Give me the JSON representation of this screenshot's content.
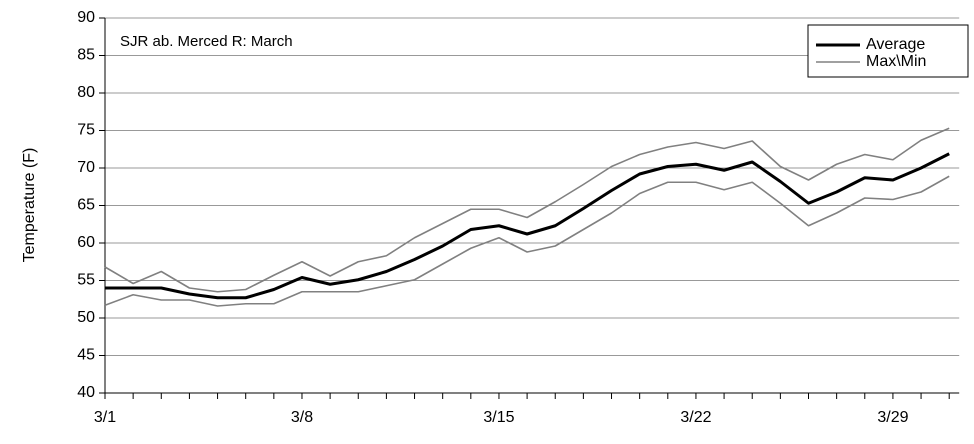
{
  "chart_data": {
    "type": "line",
    "annotation": "SJR ab. Merced R: March",
    "y_label": "Temperature (F)",
    "categories": [
      "3/1",
      null,
      null,
      null,
      null,
      null,
      null,
      "3/8",
      null,
      null,
      null,
      null,
      null,
      null,
      "3/15",
      null,
      null,
      null,
      null,
      null,
      null,
      "3/22",
      null,
      null,
      null,
      null,
      null,
      null,
      "3/29",
      null,
      null
    ],
    "series": [
      {
        "name": "Average",
        "color": "#000000",
        "values": [
          54,
          54,
          54,
          53.2,
          52.7,
          52.7,
          53.8,
          55.4,
          54.5,
          55.1,
          56.2,
          57.8,
          59.6,
          61.8,
          62.3,
          61.2,
          62.3,
          64.6,
          67,
          69.2,
          70.2,
          70.5,
          69.7,
          70.8,
          68.2,
          65.3,
          66.8,
          68.7,
          68.4,
          70,
          71.9
        ]
      },
      {
        "name": "Max\\Min",
        "color": "#808080",
        "values": [
          56.8,
          54.6,
          56.2,
          54,
          53.5,
          53.8,
          55.7,
          57.5,
          55.6,
          57.5,
          58.3,
          60.7,
          62.6,
          64.5,
          64.5,
          63.4,
          65.5,
          67.8,
          70.2,
          71.8,
          72.8,
          73.4,
          72.6,
          73.6,
          70.2,
          68.4,
          70.5,
          71.8,
          71.1,
          73.7,
          75.3
        ]
      },
      {
        "color": "#808080",
        "values": [
          51.7,
          53.1,
          52.4,
          52.4,
          51.6,
          51.9,
          51.9,
          53.5,
          53.5,
          53.5,
          54.3,
          55.1,
          57.2,
          59.3,
          60.7,
          58.8,
          59.6,
          61.8,
          64,
          66.6,
          68.1,
          68.1,
          67.1,
          68.1,
          65.3,
          62.3,
          64,
          66,
          65.8,
          66.8,
          68.9
        ]
      }
    ],
    "ylim": [
      40,
      90
    ],
    "yticks": [
      40,
      45,
      50,
      55,
      60,
      65,
      70,
      75,
      80,
      85,
      90
    ],
    "grid": true,
    "legend": "top-right"
  }
}
